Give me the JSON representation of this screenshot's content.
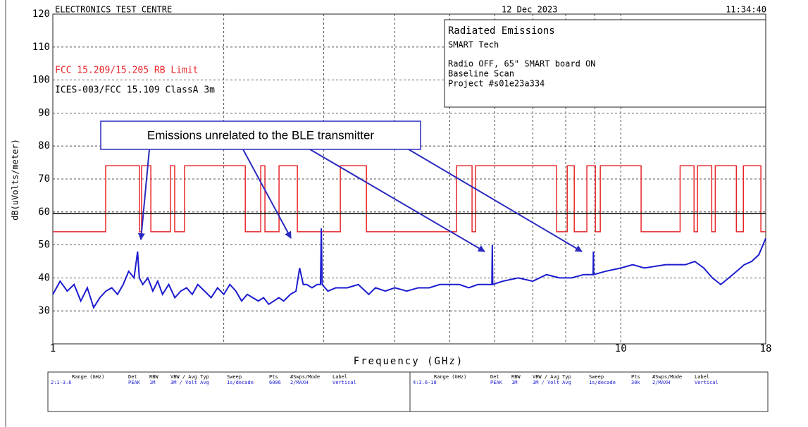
{
  "header": {
    "title": "ELECTRONICS TEST CENTRE",
    "date": "12 Dec 2023",
    "time": "11:34:40"
  },
  "info_box": {
    "title": "Radiated Emissions",
    "client": "SMART Tech",
    "lines": [
      "Radio OFF, 65\" SMART board ON",
      "Baseline Scan",
      "Project #s01e23a334"
    ]
  },
  "chart_data": {
    "type": "line",
    "xlabel": "Frequency (GHz)",
    "ylabel": "dB(uVolts/meter)",
    "annotation": "Emissions unrelated to the BLE transmitter",
    "log_x": true,
    "grid": true,
    "xlim": [
      1,
      18
    ],
    "xticks": [
      1,
      10,
      18
    ],
    "xminor": [
      2,
      3,
      4,
      5,
      6,
      7,
      8,
      9
    ],
    "ylim": [
      20,
      120
    ],
    "yticks": [
      30,
      40,
      50,
      60,
      70,
      80,
      90,
      100,
      110,
      120
    ],
    "series": [
      {
        "name": "FCC 15.209/15.205 RB Limit",
        "color": "#e8262a",
        "x": [
          1,
          1.239,
          1.239,
          1.421,
          1.421,
          1.433,
          1.433,
          1.488,
          1.488,
          1.611,
          1.611,
          1.639,
          1.639,
          1.706,
          1.706,
          2.182,
          2.182,
          2.323,
          2.323,
          2.363,
          2.363,
          2.502,
          2.502,
          2.695,
          2.695,
          3.208,
          3.208,
          3.566,
          3.566,
          5.14,
          5.14,
          5.472,
          5.472,
          5.551,
          5.551,
          7.711,
          7.711,
          8.049,
          8.049,
          8.282,
          8.282,
          8.716,
          8.716,
          9.022,
          9.022,
          9.204,
          9.204,
          10.86,
          10.86,
          12.72,
          12.72,
          13.46,
          13.46,
          13.65,
          13.65,
          14.46,
          14.46,
          14.67,
          14.67,
          15.98,
          15.98,
          16.44,
          16.44,
          17.65,
          17.65,
          18
        ],
        "values": [
          54,
          54,
          74,
          74,
          54,
          54,
          74,
          74,
          54,
          54,
          74,
          74,
          54,
          54,
          74,
          74,
          54,
          54,
          74,
          74,
          54,
          54,
          74,
          74,
          54,
          54,
          74,
          74,
          54,
          54,
          74,
          74,
          54,
          54,
          74,
          74,
          54,
          54,
          74,
          74,
          54,
          54,
          74,
          74,
          54,
          54,
          74,
          74,
          54,
          54,
          74,
          74,
          54,
          54,
          74,
          74,
          54,
          54,
          74,
          74,
          54,
          54,
          74,
          74,
          54,
          54
        ]
      },
      {
        "name": "ICES-003/FCC 15.109 ClassA 3m",
        "color": "#000000",
        "x": [
          1,
          18
        ],
        "values": [
          59.5,
          59.5
        ]
      },
      {
        "color": "#1c1cd0",
        "x": [
          1,
          1.03,
          1.06,
          1.09,
          1.12,
          1.15,
          1.18,
          1.21,
          1.24,
          1.27,
          1.3,
          1.33,
          1.36,
          1.39,
          1.41,
          1.42,
          1.44,
          1.47,
          1.5,
          1.53,
          1.56,
          1.6,
          1.64,
          1.68,
          1.72,
          1.76,
          1.8,
          1.85,
          1.9,
          1.95,
          2.0,
          2.05,
          2.1,
          2.15,
          2.2,
          2.25,
          2.3,
          2.35,
          2.4,
          2.45,
          2.5,
          2.55,
          2.62,
          2.68,
          2.72,
          2.76,
          2.8,
          2.86,
          2.92,
          2.96,
          2.97,
          2.98,
          3.05,
          3.15,
          3.3,
          3.45,
          3.55,
          3.6,
          3.7,
          3.85,
          4.0,
          4.2,
          4.4,
          4.6,
          4.8,
          5.0,
          5.2,
          5.4,
          5.6,
          5.93,
          5.94,
          5.95,
          6.2,
          6.6,
          7.0,
          7.4,
          7.8,
          8.2,
          8.6,
          8.94,
          8.95,
          8.96,
          9.4,
          10,
          10.5,
          11,
          12,
          13,
          13.5,
          14,
          14.5,
          15,
          15.5,
          16,
          16.5,
          17,
          17.5,
          18
        ],
        "values": [
          35,
          39,
          36,
          38,
          33,
          37,
          31,
          34,
          36,
          37,
          35,
          38,
          42,
          40,
          48,
          40,
          38,
          40,
          36,
          39,
          35,
          38,
          34,
          36,
          37,
          35,
          38,
          36,
          34,
          37,
          35,
          38,
          36,
          33,
          35,
          34,
          33,
          34,
          32,
          33,
          34,
          33,
          35,
          36,
          43,
          38,
          38,
          37,
          38,
          38,
          55,
          38,
          36,
          37,
          37,
          38,
          36,
          35,
          37,
          36,
          37,
          36,
          37,
          37,
          38,
          38,
          38,
          37,
          38,
          38,
          50,
          38,
          39,
          40,
          39,
          41,
          40,
          40,
          41,
          41,
          48,
          41,
          42,
          43,
          44,
          43,
          44,
          44,
          45,
          43,
          40,
          38,
          40,
          42,
          44,
          45,
          47,
          52
        ]
      }
    ]
  },
  "sweep_table": {
    "columns": [
      "Range (GHz)",
      "Det",
      "RBW",
      "VBW / Avg Typ",
      "Sweep",
      "Pts",
      "#Swps/Mode",
      "Label"
    ],
    "rows": [
      [
        "2:1-3.6",
        "PEAK",
        "1M",
        "3M / Volt Avg",
        "1s/decade",
        "6006",
        "2/MAXH",
        "Vertical"
      ],
      [
        "4:3.6-18",
        "PEAK",
        "1M",
        "3M / Volt Avg",
        "1s/decade",
        "30k",
        "2/MAXH",
        "Vertical"
      ]
    ]
  }
}
